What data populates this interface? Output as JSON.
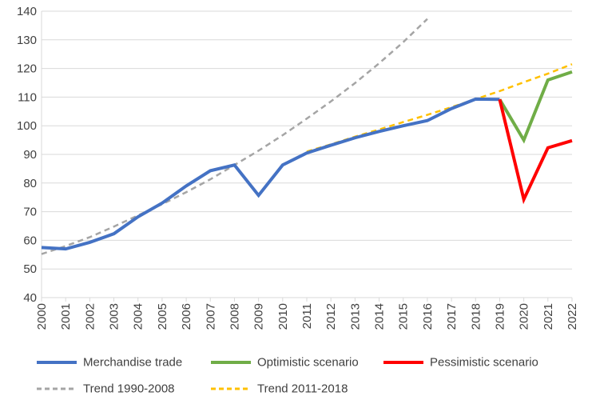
{
  "chart_data": {
    "type": "line",
    "title": "",
    "xlabel": "",
    "ylabel": "",
    "ylim": [
      40,
      140
    ],
    "yticks": [
      40,
      50,
      60,
      70,
      80,
      90,
      100,
      110,
      120,
      130,
      140
    ],
    "x": [
      "2000",
      "2001",
      "2002",
      "2003",
      "2004",
      "2005",
      "2006",
      "2007",
      "2008",
      "2009",
      "2010",
      "2011",
      "2012",
      "2013",
      "2014",
      "2015",
      "2016",
      "2017",
      "2018",
      "2019",
      "2020",
      "2021",
      "2022"
    ],
    "grid": "horizontal",
    "legend_position": "bottom",
    "series": [
      {
        "name": "Merchandise trade",
        "color": "#4472C4",
        "style": "solid",
        "x": [
          "2000",
          "2001",
          "2002",
          "2003",
          "2004",
          "2005",
          "2006",
          "2007",
          "2008",
          "2009",
          "2010",
          "2011",
          "2012",
          "2013",
          "2014",
          "2015",
          "2016",
          "2017",
          "2018",
          "2019"
        ],
        "values": [
          57.5,
          57.0,
          59.3,
          62.3,
          68.2,
          73.0,
          79.0,
          84.3,
          86.3,
          75.7,
          86.3,
          90.5,
          93.2,
          95.8,
          98.0,
          100.0,
          101.8,
          106.0,
          109.3,
          109.2
        ]
      },
      {
        "name": "Optimistic scenario",
        "color": "#70AD47",
        "style": "solid",
        "x": [
          "2019",
          "2020",
          "2021",
          "2022"
        ],
        "values": [
          109.2,
          95.0,
          116.0,
          118.8
        ]
      },
      {
        "name": "Pessimistic scenario",
        "color": "#FF0000",
        "style": "solid",
        "x": [
          "2019",
          "2020",
          "2021",
          "2022"
        ],
        "values": [
          109.2,
          74.3,
          92.3,
          94.8
        ]
      },
      {
        "name": "Trend 1990-2008",
        "color": "#A5A5A5",
        "style": "dashed",
        "x": [
          "2000",
          "2001",
          "2002",
          "2003",
          "2004",
          "2005",
          "2006",
          "2007",
          "2008",
          "2009",
          "2010",
          "2011",
          "2012",
          "2013",
          "2014",
          "2015",
          "2016"
        ],
        "values": [
          55.2,
          58.0,
          61.1,
          64.8,
          68.7,
          72.6,
          76.8,
          81.3,
          86.3,
          91.3,
          96.7,
          102.5,
          108.5,
          114.9,
          121.8,
          129.2,
          137.3
        ]
      },
      {
        "name": "Trend 2011-2018",
        "color": "#FFC000",
        "style": "dashed",
        "x": [
          "2011",
          "2012",
          "2013",
          "2014",
          "2015",
          "2016",
          "2017",
          "2018",
          "2019",
          "2020",
          "2021",
          "2022"
        ],
        "values": [
          91.0,
          93.5,
          96.2,
          98.7,
          101.3,
          103.8,
          106.5,
          109.3,
          112.1,
          115.2,
          118.2,
          121.5
        ]
      }
    ]
  },
  "legend": {
    "items": [
      {
        "label": "Merchandise trade",
        "color": "#4472C4",
        "style": "solid"
      },
      {
        "label": "Optimistic scenario",
        "color": "#70AD47",
        "style": "solid"
      },
      {
        "label": "Pessimistic scenario",
        "color": "#FF0000",
        "style": "solid"
      },
      {
        "label": "Trend 1990-2008",
        "color": "#A5A5A5",
        "style": "dashed"
      },
      {
        "label": "Trend 2011-2018",
        "color": "#FFC000",
        "style": "dashed"
      }
    ]
  }
}
